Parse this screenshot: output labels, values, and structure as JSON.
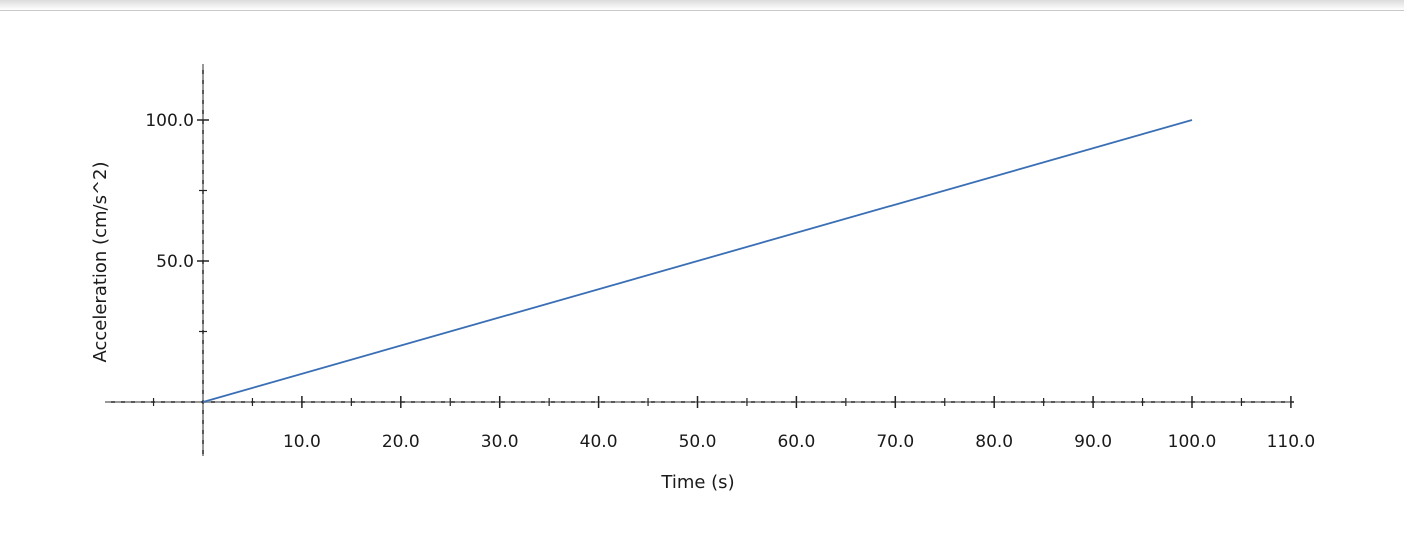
{
  "chart_data": {
    "type": "line",
    "title": "",
    "xlabel": "Time (s)",
    "ylabel": "Acceleration (cm/s^2)",
    "xlim": [
      -10,
      110
    ],
    "ylim": [
      -20,
      120
    ],
    "x_ticks": [
      10,
      20,
      30,
      40,
      50,
      60,
      70,
      80,
      90,
      100,
      110
    ],
    "x_tick_labels": [
      "10.0",
      "20.0",
      "30.0",
      "40.0",
      "50.0",
      "60.0",
      "70.0",
      "80.0",
      "90.0",
      "100.0",
      "110.0"
    ],
    "x_minor_ticks": [
      -5,
      5,
      15,
      25,
      35,
      45,
      55,
      65,
      75,
      85,
      95,
      105
    ],
    "y_ticks": [
      50,
      100
    ],
    "y_tick_labels": [
      "50.0",
      "100.0"
    ],
    "y_minor_ticks": [
      25,
      75
    ],
    "grid": false,
    "series": [
      {
        "color": "#3a6fb5",
        "x": [
          0,
          100
        ],
        "y": [
          0,
          100
        ]
      }
    ]
  }
}
